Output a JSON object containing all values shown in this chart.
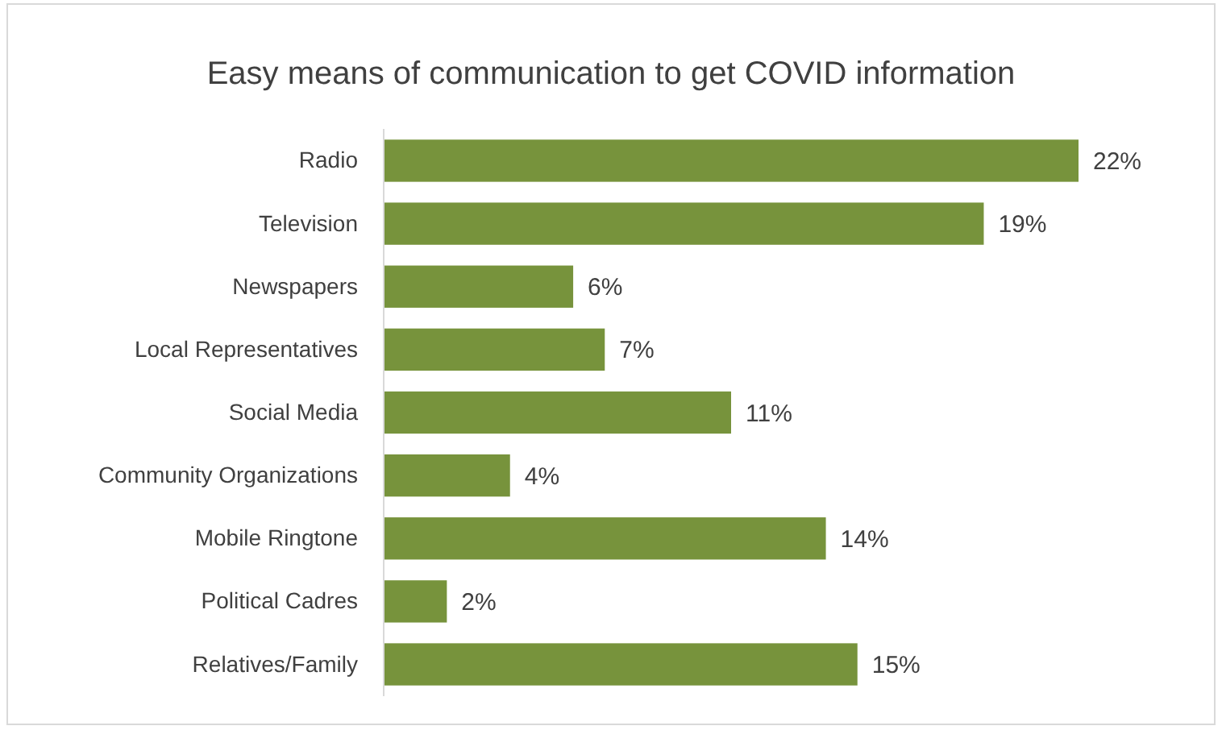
{
  "chart_data": {
    "type": "bar",
    "orientation": "horizontal",
    "title": "Easy means of communication to get COVID information",
    "categories": [
      "Radio",
      "Television",
      "Newspapers",
      "Local Representatives",
      "Social Media",
      "Community Organizations",
      "Mobile Ringtone",
      "Political Cadres",
      "Relatives/Family"
    ],
    "values": [
      22,
      19,
      6,
      7,
      11,
      4,
      14,
      2,
      15
    ],
    "value_labels": [
      "22%",
      "19%",
      "6%",
      "7%",
      "11%",
      "4%",
      "14%",
      "2%",
      "15%"
    ],
    "color": "#77933c",
    "tick_labels": "y"
  }
}
